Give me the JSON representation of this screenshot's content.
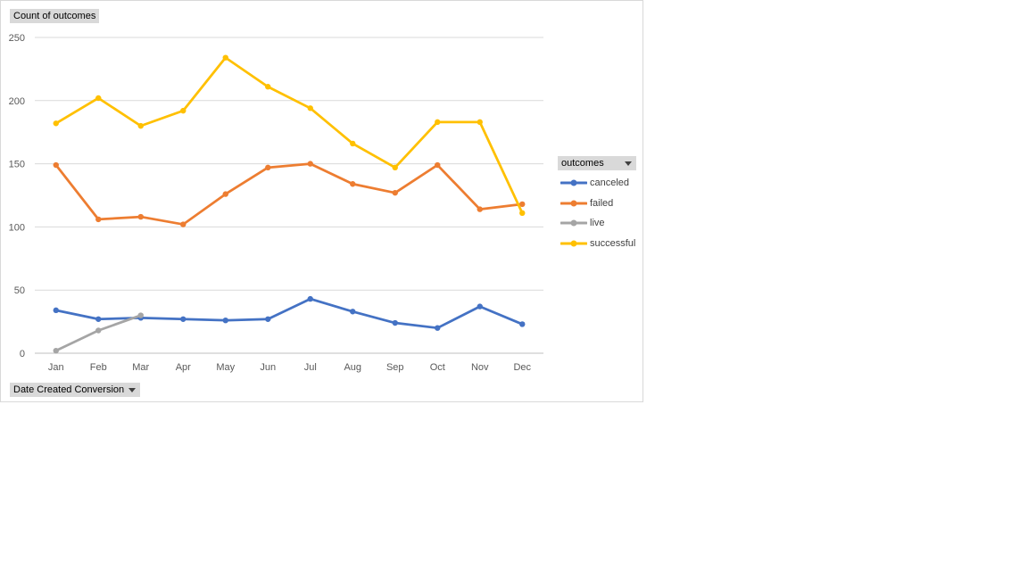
{
  "values_button": {
    "label": "Count of outcomes"
  },
  "axis_button": {
    "label": "Date Created Conversion"
  },
  "legend": {
    "title": "outcomes",
    "items": [
      {
        "label": "canceled",
        "color": "#4472c4"
      },
      {
        "label": "failed",
        "color": "#ed7d31"
      },
      {
        "label": "live",
        "color": "#a5a5a5"
      },
      {
        "label": "successful",
        "color": "#ffc000"
      }
    ]
  },
  "chart_data": {
    "type": "line",
    "categories": [
      "Jan",
      "Feb",
      "Mar",
      "Apr",
      "May",
      "Jun",
      "Jul",
      "Aug",
      "Sep",
      "Oct",
      "Nov",
      "Dec"
    ],
    "ylim": [
      0,
      250
    ],
    "yticks": [
      0,
      50,
      100,
      150,
      200,
      250
    ],
    "grid": true,
    "legend_position": "right",
    "xlabel": "",
    "ylabel": "",
    "series": [
      {
        "name": "canceled",
        "color": "#4472c4",
        "values": [
          34,
          27,
          28,
          27,
          26,
          27,
          43,
          33,
          24,
          20,
          37,
          23
        ]
      },
      {
        "name": "failed",
        "color": "#ed7d31",
        "values": [
          149,
          106,
          108,
          102,
          126,
          147,
          150,
          134,
          127,
          149,
          114,
          118
        ]
      },
      {
        "name": "live",
        "color": "#a5a5a5",
        "values": [
          2,
          18,
          30,
          null,
          null,
          null,
          null,
          null,
          null,
          null,
          null,
          null
        ]
      },
      {
        "name": "successful",
        "color": "#ffc000",
        "values": [
          182,
          202,
          180,
          192,
          234,
          211,
          194,
          166,
          147,
          183,
          183,
          111
        ]
      }
    ]
  }
}
